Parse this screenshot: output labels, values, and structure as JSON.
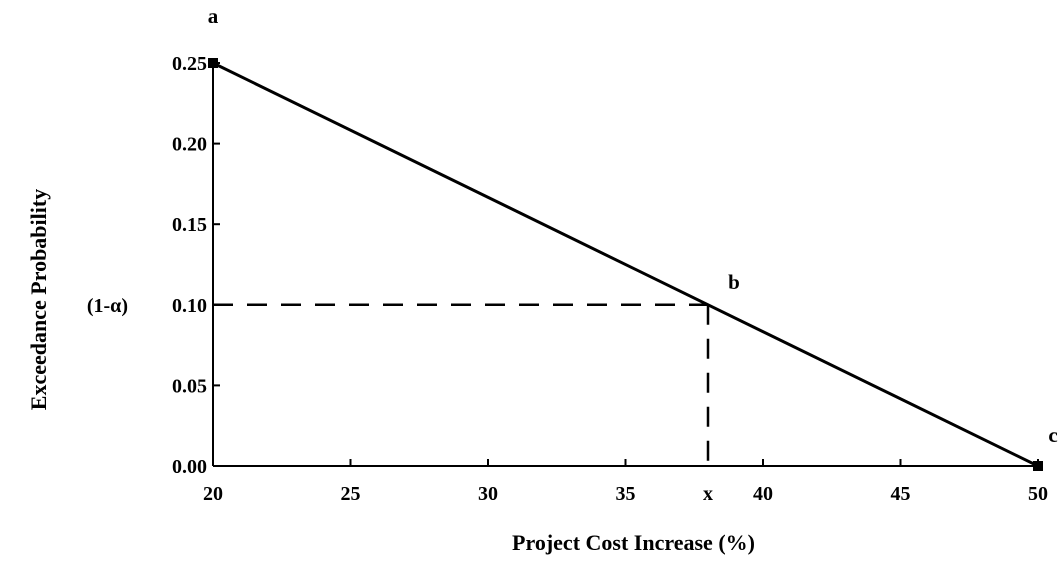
{
  "chart_data": {
    "type": "line",
    "xlabel": "Project Cost Increase (%)",
    "ylabel": "Exceedance Probability",
    "xlim": [
      20,
      50
    ],
    "ylim": [
      0,
      0.25
    ],
    "x_ticks": [
      {
        "value": 20,
        "label": "20"
      },
      {
        "value": 25,
        "label": "25"
      },
      {
        "value": 30,
        "label": "30"
      },
      {
        "value": 35,
        "label": "35"
      },
      {
        "value": 40,
        "label": "40"
      },
      {
        "value": 45,
        "label": "45"
      },
      {
        "value": 50,
        "label": "50"
      }
    ],
    "y_ticks": [
      {
        "value": 0,
        "label": "0.00"
      },
      {
        "value": 0.05,
        "label": "0.05"
      },
      {
        "value": 0.1,
        "label": "0.10"
      },
      {
        "value": 0.15,
        "label": "0.15"
      },
      {
        "value": 0.2,
        "label": "0.20"
      },
      {
        "value": 0.25,
        "label": "0.25"
      }
    ],
    "grid": false,
    "series": [
      {
        "x": [
          20,
          50
        ],
        "y": [
          0.25,
          0.0
        ]
      }
    ],
    "points": [
      {
        "label": "a",
        "x": 20,
        "y": 0.25,
        "marker": true
      },
      {
        "label": "b",
        "x": 38,
        "y": 0.1,
        "marker": false
      },
      {
        "label": "c",
        "x": 50,
        "y": 0.0,
        "marker": true
      }
    ],
    "reference": {
      "x": 38,
      "y": 0.1,
      "x_label": "x",
      "y_label": "(1-α)"
    }
  }
}
